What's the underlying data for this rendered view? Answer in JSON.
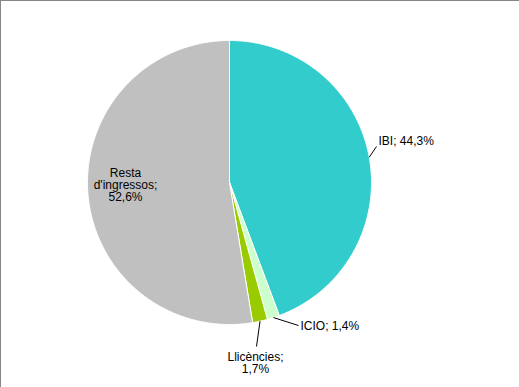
{
  "chart_data": {
    "type": "pie",
    "categories": [
      "IBI",
      "ICIO",
      "Llicències",
      "Resta d'ingressos"
    ],
    "values": [
      44.3,
      1.4,
      1.7,
      52.6
    ],
    "value_labels": [
      "IBI; 44,3%",
      "ICIO; 1,4%",
      "Llicències; 1,7%",
      "Resta d'ingressos; 52,6%"
    ],
    "colors": [
      "#33cccc",
      "#ccffcc",
      "#99cc00",
      "#c0c0c0"
    ],
    "data_labels": true
  }
}
